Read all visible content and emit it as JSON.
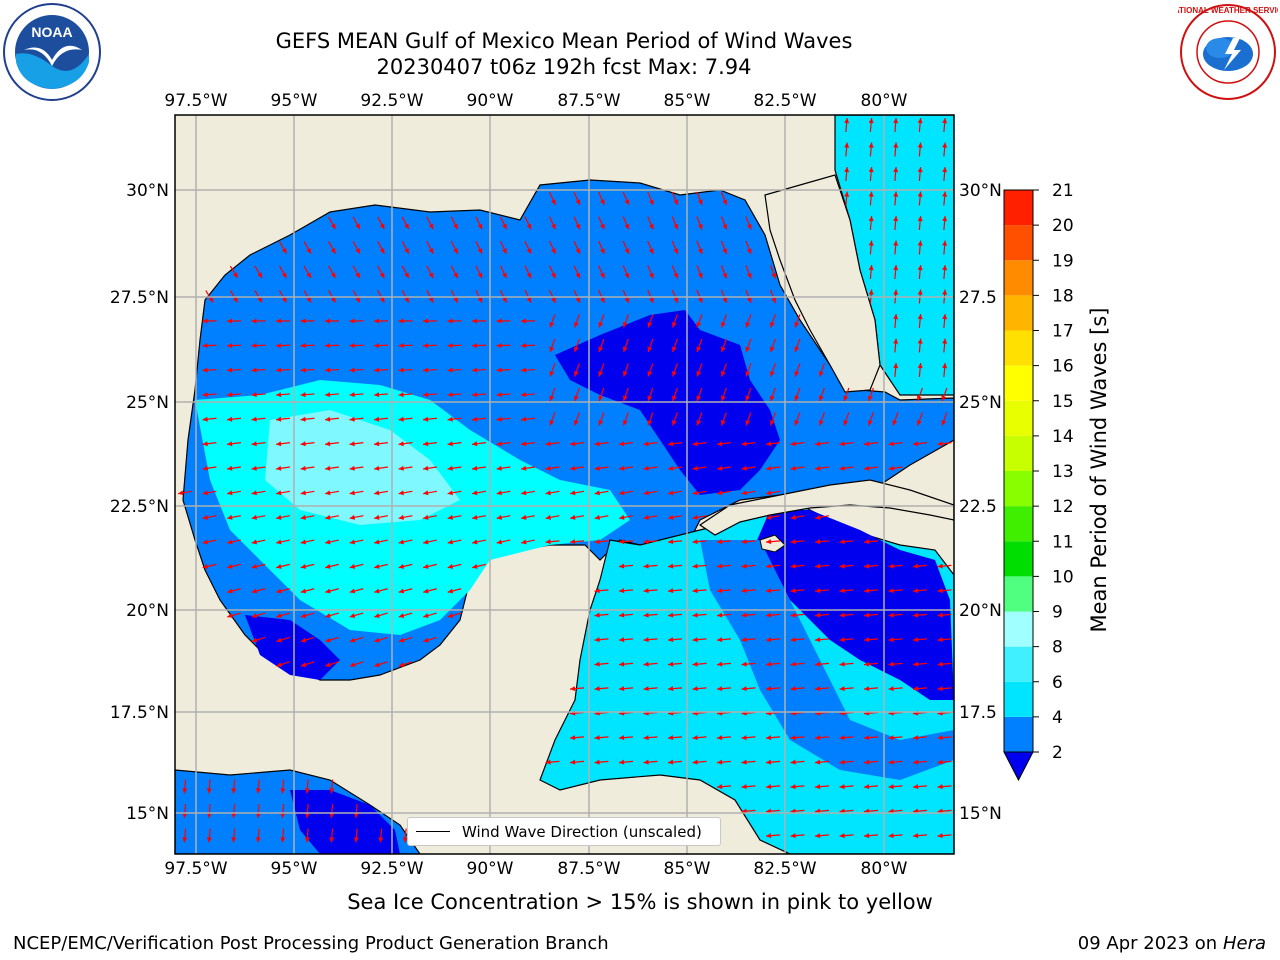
{
  "title": {
    "line1": "GEFS MEAN Gulf of Mexico Mean Period of Wind Waves",
    "line2": "20230407 t06z 192h fcst   Max: 7.94"
  },
  "map": {
    "lon_ticks": [
      "97.5°W",
      "95°W",
      "92.5°W",
      "90°W",
      "87.5°W",
      "85°W",
      "82.5°W",
      "80°W"
    ],
    "lat_ticks_left": [
      "30°N",
      "27.5°N",
      "25°N",
      "22.5°N",
      "20°N",
      "17.5°N",
      "15°N"
    ],
    "lat_ticks_right": [
      "30°N",
      "27.5",
      "25°N",
      "22.5",
      "20°N",
      "17.5",
      "15°N"
    ],
    "legend_label": "Wind Wave Direction (unscaled)",
    "land_color": "#efecdc",
    "arrow_color": "#ff0000"
  },
  "colorbar": {
    "label": "Mean Period of Wind Waves [s]",
    "ticks": [
      "2",
      "4",
      "6",
      "8",
      "9",
      "10",
      "11",
      "12",
      "13",
      "14",
      "15",
      "16",
      "17",
      "18",
      "19",
      "20",
      "21"
    ],
    "colors": [
      "#0080ff",
      "#00e5ff",
      "#40f0ff",
      "#a0ffff",
      "#50ff80",
      "#00dd00",
      "#40ee00",
      "#88ff00",
      "#c8ff00",
      "#e8ff00",
      "#ffff00",
      "#ffe000",
      "#ffb400",
      "#ff8c00",
      "#ff5000",
      "#ff2000"
    ],
    "under_color": "#0000ee"
  },
  "note": "Sea Ice Concentration > 15% is shown in pink to yellow",
  "footer": {
    "left": "NCEP/EMC/Verification Post Processing Product Generation Branch",
    "right_date": "09 Apr 2023 on ",
    "right_host": "Hera"
  },
  "logos": {
    "noaa_text": "NOAA",
    "nws_text": "NATIONAL WEATHER SERVICE"
  }
}
